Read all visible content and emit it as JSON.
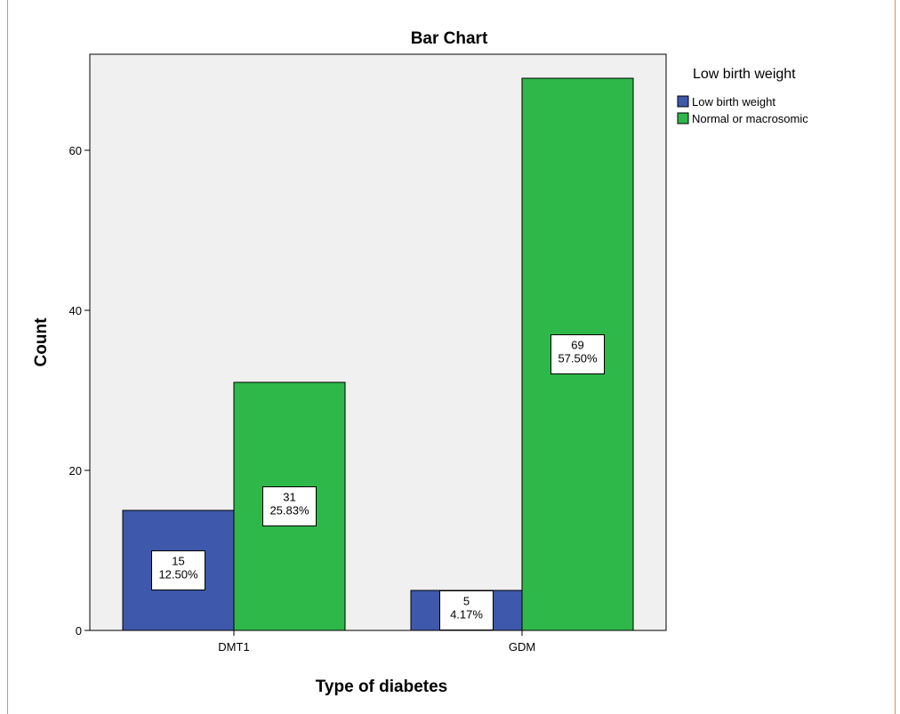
{
  "chart_data": {
    "type": "bar",
    "title": "Bar Chart",
    "xlabel": "Type of diabetes",
    "ylabel": "Count",
    "categories": [
      "DMT1",
      "GDM"
    ],
    "ylim": [
      0,
      72
    ],
    "yticks": [
      0,
      20,
      40,
      60
    ],
    "grid": false,
    "legend": {
      "title": "Low birth weight",
      "placement": "right"
    },
    "series": [
      {
        "name": "Low birth weight",
        "color": "#3e58ac",
        "values": [
          15,
          5
        ],
        "labels": [
          [
            "15",
            "12.50%"
          ],
          [
            "5",
            "4.17%"
          ]
        ]
      },
      {
        "name": "Normal or macrosomic",
        "color": "#2eb84a",
        "values": [
          31,
          69
        ],
        "labels": [
          [
            "31",
            "25.83%"
          ],
          [
            "69",
            "57.50%"
          ]
        ]
      }
    ]
  }
}
